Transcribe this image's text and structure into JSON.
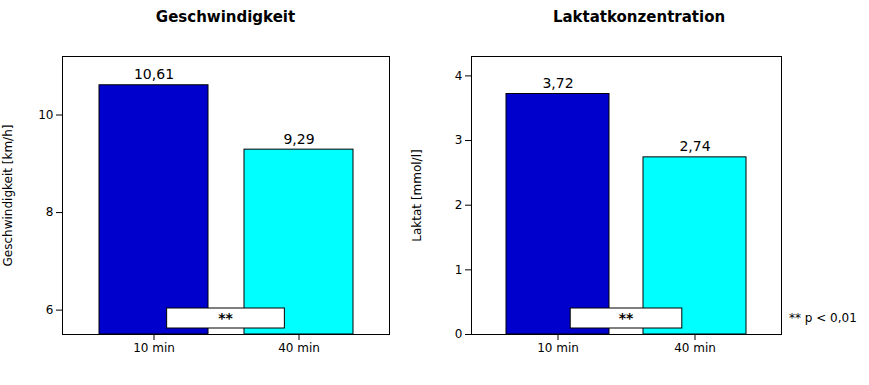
{
  "chart_data": [
    {
      "type": "bar",
      "title": "Geschwindigkeit",
      "categories": [
        "10 min",
        "40 min"
      ],
      "values": [
        10.61,
        9.29
      ],
      "value_labels": [
        "10,61",
        "9,29"
      ],
      "data_labels": true,
      "colors": [
        "#0000CC",
        "#00FFFF"
      ],
      "ylabel": "Geschwindigkeit [km/h]",
      "ylim": [
        5.5,
        11.2
      ],
      "yticks": [
        6,
        8,
        10
      ],
      "annotations": [
        "**"
      ]
    },
    {
      "type": "bar",
      "title": "Laktatkonzentration",
      "categories": [
        "10 min",
        "40 min"
      ],
      "values": [
        3.72,
        2.74
      ],
      "value_labels": [
        "3,72",
        "2,74"
      ],
      "data_labels": true,
      "colors": [
        "#0000CC",
        "#00FFFF"
      ],
      "ylabel": "Laktat [mmol/l]",
      "ylim": [
        0,
        4.3
      ],
      "yticks": [
        0,
        1,
        2,
        3,
        4
      ],
      "annotations": [
        "**",
        "** p < 0,01"
      ]
    }
  ]
}
